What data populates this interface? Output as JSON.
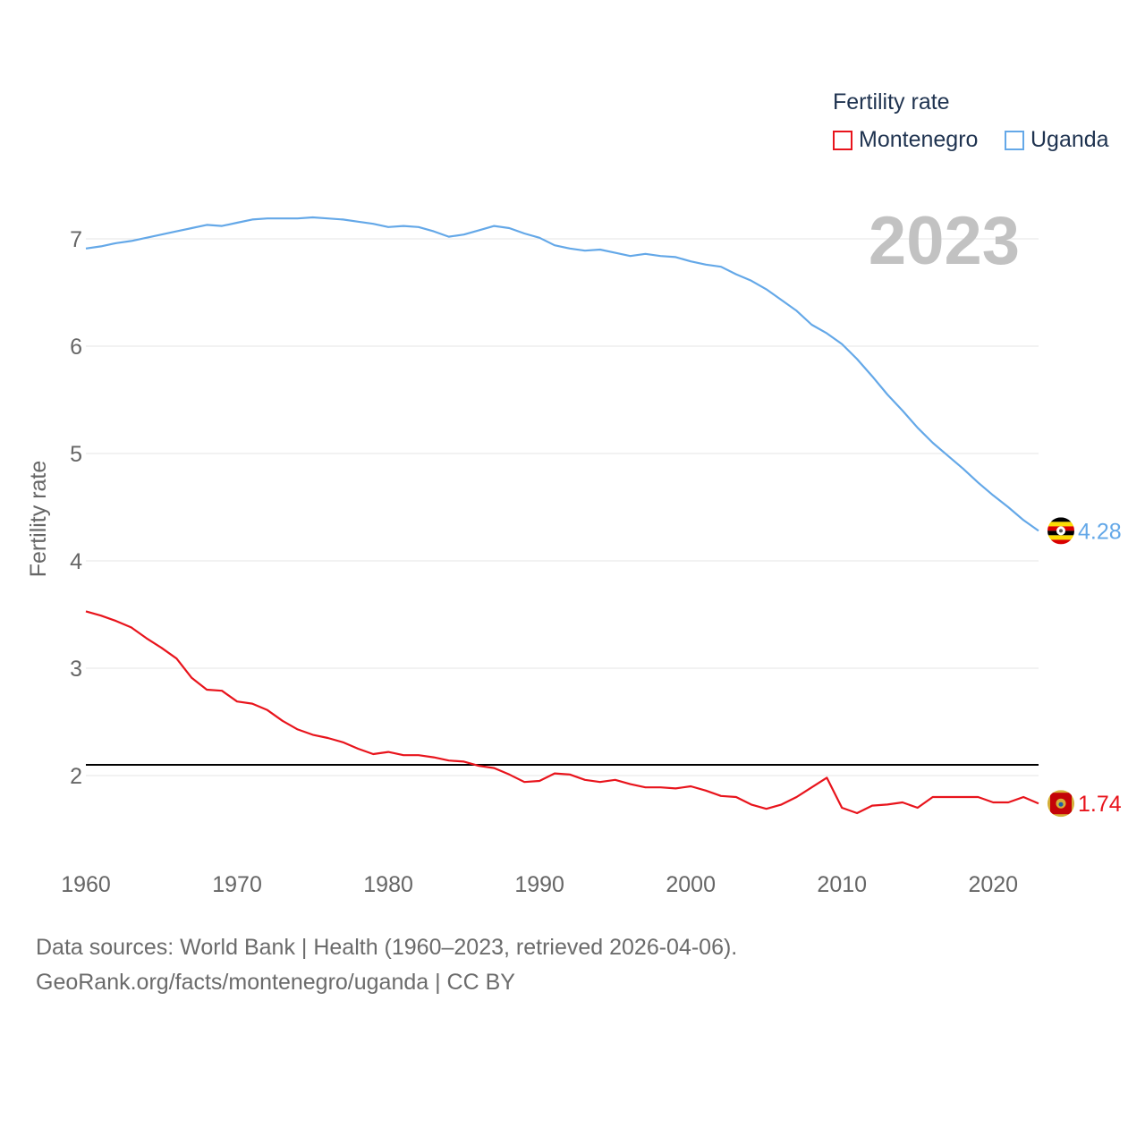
{
  "legend": {
    "title": "Fertility rate"
  },
  "year_label": "2023",
  "source": {
    "line1": "Data sources: World Bank | Health (1960–2023, retrieved 2026-04-06).",
    "line2": "GeoRank.org/facts/montenegro/uganda | CC BY"
  },
  "colors": {
    "montenegro": "#e8141c",
    "uganda": "#64a8e8",
    "reference": "#000000",
    "grid": "#e6e6e6",
    "axis_text": "#666666"
  },
  "chart_data": {
    "type": "line",
    "title": "",
    "xlabel": "",
    "ylabel": "Fertility rate",
    "xlim": [
      1960,
      2023
    ],
    "ylim": [
      1.0,
      7.95
    ],
    "yticks": [
      2,
      3,
      4,
      5,
      6,
      7
    ],
    "xticks": [
      1960,
      1970,
      1980,
      1990,
      2000,
      2010,
      2020
    ],
    "reference_line": 2.1,
    "x": [
      1960,
      1961,
      1962,
      1963,
      1964,
      1965,
      1966,
      1967,
      1968,
      1969,
      1970,
      1971,
      1972,
      1973,
      1974,
      1975,
      1976,
      1977,
      1978,
      1979,
      1980,
      1981,
      1982,
      1983,
      1984,
      1985,
      1986,
      1987,
      1988,
      1989,
      1990,
      1991,
      1992,
      1993,
      1994,
      1995,
      1996,
      1997,
      1998,
      1999,
      2000,
      2001,
      2002,
      2003,
      2004,
      2005,
      2006,
      2007,
      2008,
      2009,
      2010,
      2011,
      2012,
      2013,
      2014,
      2015,
      2016,
      2017,
      2018,
      2019,
      2020,
      2021,
      2022,
      2023
    ],
    "series": [
      {
        "name": "Montenegro",
        "key": "montenegro",
        "end_label": "1.74",
        "values": [
          3.53,
          3.49,
          3.44,
          3.38,
          3.28,
          3.19,
          3.09,
          2.91,
          2.8,
          2.79,
          2.69,
          2.67,
          2.61,
          2.51,
          2.43,
          2.38,
          2.35,
          2.31,
          2.25,
          2.2,
          2.22,
          2.19,
          2.19,
          2.17,
          2.14,
          2.13,
          2.09,
          2.07,
          2.01,
          1.94,
          1.95,
          2.02,
          2.01,
          1.96,
          1.94,
          1.96,
          1.92,
          1.89,
          1.89,
          1.88,
          1.9,
          1.86,
          1.81,
          1.8,
          1.73,
          1.69,
          1.73,
          1.8,
          1.89,
          1.98,
          1.7,
          1.65,
          1.72,
          1.73,
          1.75,
          1.7,
          1.8,
          1.8,
          1.8,
          1.8,
          1.75,
          1.75,
          1.8,
          1.74
        ]
      },
      {
        "name": "Uganda",
        "key": "uganda",
        "end_label": "4.28",
        "values": [
          6.91,
          6.93,
          6.96,
          6.98,
          7.01,
          7.04,
          7.07,
          7.1,
          7.13,
          7.12,
          7.15,
          7.18,
          7.19,
          7.19,
          7.19,
          7.2,
          7.19,
          7.18,
          7.16,
          7.14,
          7.11,
          7.12,
          7.11,
          7.07,
          7.02,
          7.04,
          7.08,
          7.12,
          7.1,
          7.05,
          7.01,
          6.94,
          6.91,
          6.89,
          6.9,
          6.87,
          6.84,
          6.86,
          6.84,
          6.83,
          6.79,
          6.76,
          6.74,
          6.67,
          6.61,
          6.53,
          6.43,
          6.33,
          6.2,
          6.12,
          6.02,
          5.88,
          5.72,
          5.55,
          5.4,
          5.24,
          5.1,
          4.98,
          4.86,
          4.73,
          4.61,
          4.5,
          4.38,
          4.28
        ]
      }
    ]
  }
}
